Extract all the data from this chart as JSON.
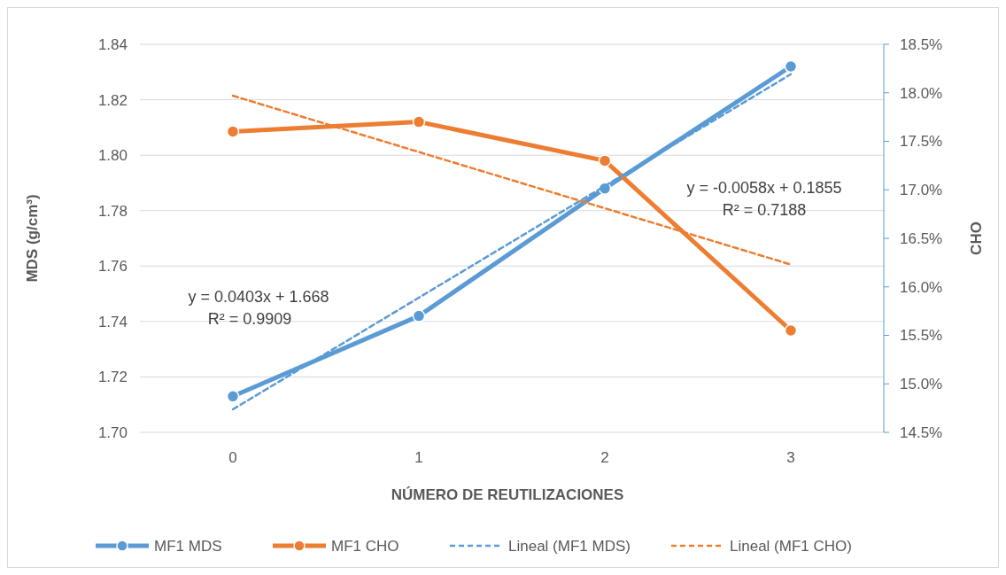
{
  "chart_data": {
    "type": "line",
    "xlabel": "NÚMERO DE REUTILIZACIONES",
    "ylabel": "MDS (g/cm³)",
    "y2label": "CHO",
    "categories": [
      "0",
      "1",
      "2",
      "3"
    ],
    "series": [
      {
        "name": "MF1 MDS",
        "color": "#5b9bd5",
        "values": [
          1.713,
          1.742,
          1.788,
          1.832
        ],
        "marker": "circle",
        "line_style": "solid"
      },
      {
        "name": "MF1 CHO",
        "color": "#ed7d31",
        "values": [
          0.176,
          0.177,
          0.173,
          0.1555
        ],
        "axis": "y2",
        "marker": "circle",
        "line_style": "solid"
      },
      {
        "name": "Lineal (MF1 MDS)",
        "color": "#5b9bd5",
        "values": [
          1.7083,
          1.7486,
          1.7889,
          1.8292
        ],
        "marker": "none",
        "line_style": "dashed"
      },
      {
        "name": "Lineal (MF1 CHO)",
        "color": "#ed7d31",
        "values": [
          0.1797,
          0.1739,
          0.1681,
          0.1623
        ],
        "axis": "y2",
        "marker": "none",
        "line_style": "dashed"
      }
    ],
    "ylim": [
      1.7,
      1.84
    ],
    "yticks": [
      {
        "value": 1.7,
        "label": "1.70"
      },
      1.72,
      1.74,
      1.76,
      1.78,
      {
        "value": 1.8,
        "label": "1.80"
      },
      1.82,
      1.84
    ],
    "y2lim": [
      0.145,
      0.185
    ],
    "y2ticks": [
      {
        "value": 0.145,
        "label": "14.5%"
      },
      {
        "value": 0.15,
        "label": "15.0%"
      },
      {
        "value": 0.155,
        "label": "15.5%"
      },
      {
        "value": 0.16,
        "label": "16.0%"
      },
      {
        "value": 0.165,
        "label": "16.5%"
      },
      {
        "value": 0.17,
        "label": "17.0%"
      },
      {
        "value": 0.175,
        "label": "17.5%"
      },
      {
        "value": 0.18,
        "label": "18.0%"
      },
      {
        "value": 0.185,
        "label": "18.5%"
      }
    ],
    "annotations": [
      "y = 0.0403x + 1.668\nR² = 0.9909",
      "y = -0.0058x + 0.1855\nR² = 0.7188"
    ],
    "grid": "y",
    "legend": "bottom"
  }
}
